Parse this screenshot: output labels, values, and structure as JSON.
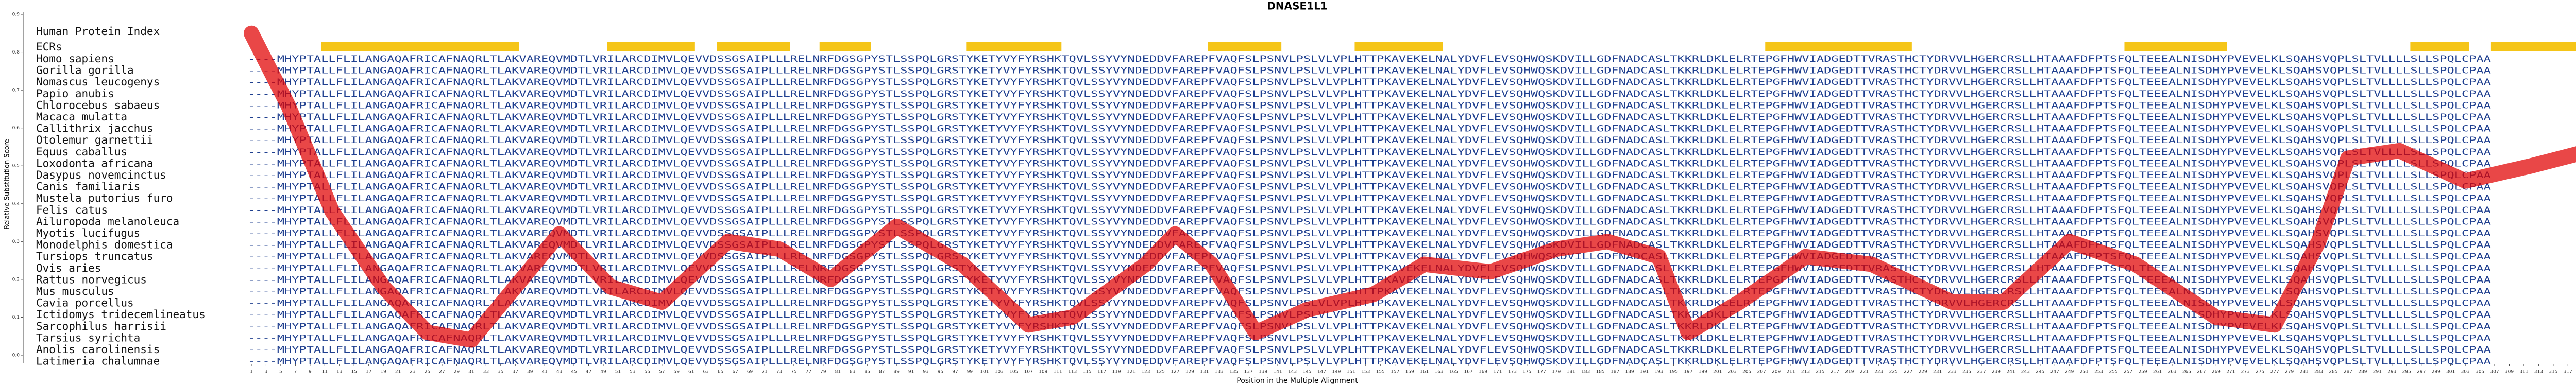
{
  "chart_data": {
    "type": "line",
    "title": "DNASE1L1",
    "xlabel": "Position in the Multiple Alignment",
    "ylabel": "Relative Substitution Score",
    "x": [
      1,
      6,
      12,
      19,
      25,
      31,
      37,
      43,
      50,
      57,
      66,
      73,
      80,
      89,
      98,
      107,
      113,
      123,
      127,
      132,
      138,
      145,
      154,
      161,
      170,
      179,
      186,
      193,
      197,
      204,
      213,
      222,
      233,
      240,
      249,
      258,
      269,
      277,
      283,
      287,
      294,
      303,
      312,
      320
    ],
    "series": [
      {
        "color": "#e00000",
        "values": [
          0.85,
          0.66,
          0.38,
          0.18,
          0.06,
          0.04,
          0.18,
          0.32,
          0.18,
          0.14,
          0.3,
          0.28,
          0.2,
          0.34,
          0.24,
          0.08,
          0.1,
          0.24,
          0.32,
          0.24,
          0.06,
          0.12,
          0.16,
          0.24,
          0.22,
          0.28,
          0.3,
          0.26,
          0.06,
          0.14,
          0.26,
          0.24,
          0.14,
          0.14,
          0.3,
          0.24,
          0.1,
          0.08,
          0.3,
          0.52,
          0.54,
          0.46,
          0.5,
          0.54
        ]
      }
    ],
    "xlim": [
      1,
      320
    ],
    "ylim": [
      0,
      0.9
    ],
    "xticks": [
      1,
      3,
      5,
      7,
      9,
      11,
      13,
      15,
      17,
      19,
      21,
      23,
      25,
      27,
      29,
      31,
      33,
      35,
      37,
      39,
      41,
      43,
      45,
      47,
      49,
      51,
      53,
      55,
      57,
      59,
      61,
      63,
      65,
      67,
      69,
      71,
      73,
      75,
      77,
      79,
      81,
      83,
      85,
      87,
      89,
      91,
      93,
      95,
      97,
      99,
      101,
      103,
      105,
      107,
      109,
      111,
      113,
      115,
      117,
      119,
      121,
      123,
      125,
      127,
      129,
      131,
      133,
      135,
      137,
      139,
      141,
      143,
      145,
      147,
      149,
      151,
      153,
      155,
      157,
      159,
      161,
      163,
      165,
      167,
      169,
      171,
      173,
      175,
      177,
      179,
      181,
      183,
      185,
      187,
      189,
      191,
      193,
      195,
      197,
      199,
      201,
      203,
      205,
      207,
      209,
      211,
      213,
      215,
      217,
      219,
      221,
      223,
      225,
      227,
      229,
      231,
      233,
      235,
      237,
      239,
      241,
      243,
      245,
      247,
      249,
      251,
      253,
      255,
      257,
      259,
      261,
      263,
      265,
      267,
      269,
      271,
      273,
      275,
      277,
      279,
      281,
      283,
      285,
      287,
      289,
      291,
      293,
      295,
      297,
      299,
      301,
      303,
      305,
      307,
      309,
      311,
      313,
      315,
      317,
      319
    ],
    "yticks": [
      {
        "value": 0,
        "label": "0.0"
      },
      0.1,
      0.2,
      0.3,
      0.4,
      0.5,
      0.6,
      0.7,
      0.8,
      0.9
    ]
  },
  "alignment": {
    "index_label": "Human Protein Index",
    "ecr_label": "ECRs",
    "ecrs": [
      [
        11,
        37
      ],
      [
        50,
        61
      ],
      [
        65,
        74
      ],
      [
        79,
        85
      ],
      [
        99,
        111
      ],
      [
        132,
        141
      ],
      [
        152,
        163
      ],
      [
        208,
        227
      ],
      [
        257,
        270
      ],
      [
        296,
        303
      ],
      [
        307,
        318
      ]
    ],
    "rows": [
      {
        "species": "Homo sapiens",
        "sequence": "----MHYPTALLFLILANGAQAFRICAFNAQRLTLAKVAREQVMDTLVRILARCDIMVLQEVVDSSGSAIPLLLRELNRFDGSGPYSTLSSPQLGRSTYKETYVYFYRSHKTQVLSSYVYNDEDDVFAREPFVAQFSLPSNVLPSLVLVPLHTTPKAVEKELNALYDVFLEVSQHWQSKDVILLGDFNADCASLTKKRLDKLELRTEPGFHWVIADGEDTTVRASTHCTYDRVVLHGERCRSLLHTAAAFDFPTSFQLTEEEALNISDHYPVEVELKLSQAHSVQPLSLTVLLLLSLLSPQLCPAA"
      },
      {
        "species": "Gorilla gorilla",
        "sequence": "----MHYPTALLFLILANGAQAFRICAFNAQRLTLAKVAREQVMDTLVRILARCDIMVLQEVVDSSGSAIPLLLRELNRFDGSGPYSTLSSPQLGRSTYKETYVYFYRSHKTQVLSSYVYNDEDDVFAREPFVAQFSLPSNVLPSLVLVPLHTTPKAVEKELNALYDVFLEVSQHWQSKDVILLGDFNADCASLTKKRLDKLELRTEPGFHWVIADGEDTTVRASTHCTYDRVVLHGERCRSLLHTAAAFDFPTSFQLTEEEALNISDHYPVEVELKLSQAHSVQPLSLTVLLLLSLLSPQLCPAA"
      },
      {
        "species": "Nomascus leucogenys",
        "sequence": "----MHYPTALLFLILANGAQAFRICAFNAQRLTLAKVAREQVMDTLVRILARCDIMVLQEVVDSSGSAIPLLLRELNRFDGSGPYSTLSSPQLGRSTYKETYVYFYRSHKTQVLSSYVYNDEDDVFAREPFVAQFSLPSNVLPSLVLVPLHTTPKAVEKELNALYDVFLEVSQHWQSKDVILLGDFNADCASLTKKRLDKLELRTEPGFHWVIADGEDTTVRASTHCTYDRVVLHGERCRSLLHTAAAFDFPTSFQLTEEEALNISDHYPVEVELKLSQAHSVQPLSLTVLLLLSLLSPQLCPAA"
      },
      {
        "species": "Papio anubis",
        "sequence": "----MHYPTALLFLILANGAQAFRICAFNAQRLTLAKVAREQVMDTLVRILARCDIMVLQEVVDSSGSAIPLLLRELNRFDGSGPYSTLSSPQLGRSTYKETYVYFYRSHKTQVLSSYVYNDEDDVFAREPFVAQFSLPSNVLPSLVLVPLHTTPKAVEKELNALYDVFLEVSQHWQSKDVILLGDFNADCASLTKKRLDKLELRTEPGFHWVIADGEDTTVRASTHCTYDRVVLHGERCRSLLHTAAAFDFPTSFQLTEEEALNISDHYPVEVELKLSQAHSVQPLSLTVLLLLSLLSPQLCPAA"
      },
      {
        "species": "Chlorocebus sabaeus",
        "sequence": "----MHYPTALLFLILANGAQAFRICAFNAQRLTLAKVAREQVMDTLVRILARCDIMVLQEVVDSSGSAIPLLLRELNRFDGSGPYSTLSSPQLGRSTYKETYVYFYRSHKTQVLSSYVYNDEDDVFAREPFVAQFSLPSNVLPSLVLVPLHTTPKAVEKELNALYDVFLEVSQHWQSKDVILLGDFNADCASLTKKRLDKLELRTEPGFHWVIADGEDTTVRASTHCTYDRVVLHGERCRSLLHTAAAFDFPTSFQLTEEEALNISDHYPVEVELKLSQAHSVQPLSLTVLLLLSLLSPQLCPAA"
      },
      {
        "species": "Macaca mulatta",
        "sequence": "----MHYPTALLFLILANGAQAFRICAFNAQRLTLAKVAREQVMDTLVRILARCDIMVLQEVVDSSGSAIPLLLRELNRFDGSGPYSTLSSPQLGRSTYKETYVYFYRSHKTQVLSSYVYNDEDDVFAREPFVAQFSLPSNVLPSLVLVPLHTTPKAVEKELNALYDVFLEVSQHWQSKDVILLGDFNADCASLTKKRLDKLELRTEPGFHWVIADGEDTTVRASTHCTYDRVVLHGERCRSLLHTAAAFDFPTSFQLTEEEALNISDHYPVEVELKLSQAHSVQPLSLTVLLLLSLLSPQLCPAA"
      },
      {
        "species": "Callithrix jacchus",
        "sequence": "----MHYPTALLFLILANGAQAFRICAFNAQRLTLAKVAREQVMDTLVRILARCDIMVLQEVVDSSGSAIPLLLRELNRFDGSGPYSTLSSPQLGRSTYKETYVYFYRSHKTQVLSSYVYNDEDDVFAREPFVAQFSLPSNVLPSLVLVPLHTTPKAVEKELNALYDVFLEVSQHWQSKDVILLGDFNADCASLTKKRLDKLELRTEPGFHWVIADGEDTTVRASTHCTYDRVVLHGERCRSLLHTAAAFDFPTSFQLTEEEALNISDHYPVEVELKLSQAHSVQPLSLTVLLLLSLLSPQLCPAA"
      },
      {
        "species": "Otolemur garnettii",
        "sequence": "----MHYPTALLFLILANGAQAFRICAFNAQRLTLAKVAREQVMDTLVRILARCDIMVLQEVVDSSGSAIPLLLRELNRFDGSGPYSTLSSPQLGRSTYKETYVYFYRSHKTQVLSSYVYNDEDDVFAREPFVAQFSLPSNVLPSLVLVPLHTTPKAVEKELNALYDVFLEVSQHWQSKDVILLGDFNADCASLTKKRLDKLELRTEPGFHWVIADGEDTTVRASTHCTYDRVVLHGERCRSLLHTAAAFDFPTSFQLTEEEALNISDHYPVEVELKLSQAHSVQPLSLTVLLLLSLLSPQLCPAA"
      },
      {
        "species": "Equus caballus",
        "sequence": "----MHYPTALLFLILANGAQAFRICAFNAQRLTLAKVAREQVMDTLVRILARCDIMVLQEVVDSSGSAIPLLLRELNRFDGSGPYSTLSSPQLGRSTYKETYVYFYRSHKTQVLSSYVYNDEDDVFAREPFVAQFSLPSNVLPSLVLVPLHTTPKAVEKELNALYDVFLEVSQHWQSKDVILLGDFNADCASLTKKRLDKLELRTEPGFHWVIADGEDTTVRASTHCTYDRVVLHGERCRSLLHTAAAFDFPTSFQLTEEEALNISDHYPVEVELKLSQAHSVQPLSLTVLLLLSLLSPQLCPAA"
      },
      {
        "species": "Loxodonta africana",
        "sequence": "----MHYPTALLFLILANGAQAFRICAFNAQRLTLAKVAREQVMDTLVRILARCDIMVLQEVVDSSGSAIPLLLRELNRFDGSGPYSTLSSPQLGRSTYKETYVYFYRSHKTQVLSSYVYNDEDDVFAREPFVAQFSLPSNVLPSLVLVPLHTTPKAVEKELNALYDVFLEVSQHWQSKDVILLGDFNADCASLTKKRLDKLELRTEPGFHWVIADGEDTTVRASTHCTYDRVVLHGERCRSLLHTAAAFDFPTSFQLTEEEALNISDHYPVEVELKLSQAHSVQPLSLTVLLLLSLLSPQLCPAA"
      },
      {
        "species": "Dasypus novemcinctus",
        "sequence": "----MHYPTALLFLILANGAQAFRICAFNAQRLTLAKVAREQVMDTLVRILARCDIMVLQEVVDSSGSAIPLLLRELNRFDGSGPYSTLSSPQLGRSTYKETYVYFYRSHKTQVLSSYVYNDEDDVFAREPFVAQFSLPSNVLPSLVLVPLHTTPKAVEKELNALYDVFLEVSQHWQSKDVILLGDFNADCASLTKKRLDKLELRTEPGFHWVIADGEDTTVRASTHCTYDRVVLHGERCRSLLHTAAAFDFPTSFQLTEEEALNISDHYPVEVELKLSQAHSVQPLSLTVLLLLSLLSPQLCPAA"
      },
      {
        "species": "Canis familiaris",
        "sequence": "----MHYPTALLFLILANGAQAFRICAFNAQRLTLAKVAREQVMDTLVRILARCDIMVLQEVVDSSGSAIPLLLRELNRFDGSGPYSTLSSPQLGRSTYKETYVYFYRSHKTQVLSSYVYNDEDDVFAREPFVAQFSLPSNVLPSLVLVPLHTTPKAVEKELNALYDVFLEVSQHWQSKDVILLGDFNADCASLTKKRLDKLELRTEPGFHWVIADGEDTTVRASTHCTYDRVVLHGERCRSLLHTAAAFDFPTSFQLTEEEALNISDHYPVEVELKLSQAHSVQPLSLTVLLLLSLLSPQLCPAA"
      },
      {
        "species": "Mustela putorius furo",
        "sequence": "----MHYPTALLFLILANGAQAFRICAFNAQRLTLAKVAREQVMDTLVRILARCDIMVLQEVVDSSGSAIPLLLRELNRFDGSGPYSTLSSPQLGRSTYKETYVYFYRSHKTQVLSSYVYNDEDDVFAREPFVAQFSLPSNVLPSLVLVPLHTTPKAVEKELNALYDVFLEVSQHWQSKDVILLGDFNADCASLTKKRLDKLELRTEPGFHWVIADGEDTTVRASTHCTYDRVVLHGERCRSLLHTAAAFDFPTSFQLTEEEALNISDHYPVEVELKLSQAHSVQPLSLTVLLLLSLLSPQLCPAA"
      },
      {
        "species": "Felis catus",
        "sequence": "----MHYPTALLFLILANGAQAFRICAFNAQRLTLAKVAREQVMDTLVRILARCDIMVLQEVVDSSGSAIPLLLRELNRFDGSGPYSTLSSPQLGRSTYKETYVYFYRSHKTQVLSSYVYNDEDDVFAREPFVAQFSLPSNVLPSLVLVPLHTTPKAVEKELNALYDVFLEVSQHWQSKDVILLGDFNADCASLTKKRLDKLELRTEPGFHWVIADGEDTTVRASTHCTYDRVVLHGERCRSLLHTAAAFDFPTSFQLTEEEALNISDHYPVEVELKLSQAHSVQPLSLTVLLLLSLLSPQLCPAA"
      },
      {
        "species": "Ailuropoda melanoleuca",
        "sequence": "----MHYPTALLFLILANGAQAFRICAFNAQRLTLAKVAREQVMDTLVRILARCDIMVLQEVVDSSGSAIPLLLRELNRFDGSGPYSTLSSPQLGRSTYKETYVYFYRSHKTQVLSSYVYNDEDDVFAREPFVAQFSLPSNVLPSLVLVPLHTTPKAVEKELNALYDVFLEVSQHWQSKDVILLGDFNADCASLTKKRLDKLELRTEPGFHWVIADGEDTTVRASTHCTYDRVVLHGERCRSLLHTAAAFDFPTSFQLTEEEALNISDHYPVEVELKLSQAHSVQPLSLTVLLLLSLLSPQLCPAA"
      },
      {
        "species": "Myotis lucifugus",
        "sequence": "----MHYPTALLFLILANGAQAFRICAFNAQRLTLAKVAREQVMDTLVRILARCDIMVLQEVVDSSGSAIPLLLRELNRFDGSGPYSTLSSPQLGRSTYKETYVYFYRSHKTQVLSSYVYNDEDDVFAREPFVAQFSLPSNVLPSLVLVPLHTTPKAVEKELNALYDVFLEVSQHWQSKDVILLGDFNADCASLTKKRLDKLELRTEPGFHWVIADGEDTTVRASTHCTYDRVVLHGERCRSLLHTAAAFDFPTSFQLTEEEALNISDHYPVEVELKLSQAHSVQPLSLTVLLLLSLLSPQLCPAA"
      },
      {
        "species": "Monodelphis domestica",
        "sequence": "----MHYPTALLFLILANGAQAFRICAFNAQRLTLAKVAREQVMDTLVRILARCDIMVLQEVVDSSGSAIPLLLRELNRFDGSGPYSTLSSPQLGRSTYKETYVYFYRSHKTQVLSSYVYNDEDDVFAREPFVAQFSLPSNVLPSLVLVPLHTTPKAVEKELNALYDVFLEVSQHWQSKDVILLGDFNADCASLTKKRLDKLELRTEPGFHWVIADGEDTTVRASTHCTYDRVVLHGERCRSLLHTAAAFDFPTSFQLTEEEALNISDHYPVEVELKLSQAHSVQPLSLTVLLLLSLLSPQLCPAA"
      },
      {
        "species": "Tursiops truncatus",
        "sequence": "----MHYPTALLFLILANGAQAFRICAFNAQRLTLAKVAREQVMDTLVRILARCDIMVLQEVVDSSGSAIPLLLRELNRFDGSGPYSTLSSPQLGRSTYKETYVYFYRSHKTQVLSSYVYNDEDDVFAREPFVAQFSLPSNVLPSLVLVPLHTTPKAVEKELNALYDVFLEVSQHWQSKDVILLGDFNADCASLTKKRLDKLELRTEPGFHWVIADGEDTTVRASTHCTYDRVVLHGERCRSLLHTAAAFDFPTSFQLTEEEALNISDHYPVEVELKLSQAHSVQPLSLTVLLLLSLLSPQLCPAA"
      },
      {
        "species": "Ovis aries",
        "sequence": "----MHYPTALLFLILANGAQAFRICAFNAQRLTLAKVAREQVMDTLVRILARCDIMVLQEVVDSSGSAIPLLLRELNRFDGSGPYSTLSSPQLGRSTYKETYVYFYRSHKTQVLSSYVYNDEDDVFAREPFVAQFSLPSNVLPSLVLVPLHTTPKAVEKELNALYDVFLEVSQHWQSKDVILLGDFNADCASLTKKRLDKLELRTEPGFHWVIADGEDTTVRASTHCTYDRVVLHGERCRSLLHTAAAFDFPTSFQLTEEEALNISDHYPVEVELKLSQAHSVQPLSLTVLLLLSLLSPQLCPAA"
      },
      {
        "species": "Rattus norvegicus",
        "sequence": "----MHYPTALLFLILANGAQAFRICAFNAQRLTLAKVAREQVMDTLVRILARCDIMVLQEVVDSSGSAIPLLLRELNRFDGSGPYSTLSSPQLGRSTYKETYVYFYRSHKTQVLSSYVYNDEDDVFAREPFVAQFSLPSNVLPSLVLVPLHTTPKAVEKELNALYDVFLEVSQHWQSKDVILLGDFNADCASLTKKRLDKLELRTEPGFHWVIADGEDTTVRASTHCTYDRVVLHGERCRSLLHTAAAFDFPTSFQLTEEEALNISDHYPVEVELKLSQAHSVQPLSLTVLLLLSLLSPQLCPAA"
      },
      {
        "species": "Mus musculus",
        "sequence": "----MHYPTALLFLILANGAQAFRICAFNAQRLTLAKVAREQVMDTLVRILARCDIMVLQEVVDSSGSAIPLLLRELNRFDGSGPYSTLSSPQLGRSTYKETYVYFYRSHKTQVLSSYVYNDEDDVFAREPFVAQFSLPSNVLPSLVLVPLHTTPKAVEKELNALYDVFLEVSQHWQSKDVILLGDFNADCASLTKKRLDKLELRTEPGFHWVIADGEDTTVRASTHCTYDRVVLHGERCRSLLHTAAAFDFPTSFQLTEEEALNISDHYPVEVELKLSQAHSVQPLSLTVLLLLSLLSPQLCPAA"
      },
      {
        "species": "Cavia porcellus",
        "sequence": "----MHYPTALLFLILANGAQAFRICAFNAQRLTLAKVAREQVMDTLVRILARCDIMVLQEVVDSSGSAIPLLLRELNRFDGSGPYSTLSSPQLGRSTYKETYVYFYRSHKTQVLSSYVYNDEDDVFAREPFVAQFSLPSNVLPSLVLVPLHTTPKAVEKELNALYDVFLEVSQHWQSKDVILLGDFNADCASLTKKRLDKLELRTEPGFHWVIADGEDTTVRASTHCTYDRVVLHGERCRSLLHTAAAFDFPTSFQLTEEEALNISDHYPVEVELKLSQAHSVQPLSLTVLLLLSLLSPQLCPAA"
      },
      {
        "species": "Ictidomys tridecemlineatus",
        "sequence": "----MHYPTALLFLILANGAQAFRICAFNAQRLTLAKVAREQVMDTLVRILARCDIMVLQEVVDSSGSAIPLLLRELNRFDGSGPYSTLSSPQLGRSTYKETYVYFYRSHKTQVLSSYVYNDEDDVFAREPFVAQFSLPSNVLPSLVLVPLHTTPKAVEKELNALYDVFLEVSQHWQSKDVILLGDFNADCASLTKKRLDKLELRTEPGFHWVIADGEDTTVRASTHCTYDRVVLHGERCRSLLHTAAAFDFPTSFQLTEEEALNISDHYPVEVELKLSQAHSVQPLSLTVLLLLSLLSPQLCPAA"
      },
      {
        "species": "Sarcophilus harrisii",
        "sequence": "----MHYPTALLFLILANGAQAFRICAFNAQRLTLAKVAREQVMDTLVRILARCDIMVLQEVVDSSGSAIPLLLRELNRFDGSGPYSTLSSPQLGRSTYKETYVYFYRSHKTQVLSSYVYNDEDDVFAREPFVAQFSLPSNVLPSLVLVPLHTTPKAVEKELNALYDVFLEVSQHWQSKDVILLGDFNADCASLTKKRLDKLELRTEPGFHWVIADGEDTTVRASTHCTYDRVVLHGERCRSLLHTAAAFDFPTSFQLTEEEALNISDHYPVEVELKLSQAHSVQPLSLTVLLLLSLLSPQLCPAA"
      },
      {
        "species": "Tarsius syrichta",
        "sequence": "----MHYPTALLFLILANGAQAFRICAFNAQRLTLAKVAREQVMDTLVRILARCDIMVLQEVVDSSGSAIPLLLRELNRFDGSGPYSTLSSPQLGRSTYKETYVYFYRSHKTQVLSSYVYNDEDDVFAREPFVAQFSLPSNVLPSLVLVPLHTTPKAVEKELNALYDVFLEVSQHWQSKDVILLGDFNADCASLTKKRLDKLELRTEPGFHWVIADGEDTTVRASTHCTYDRVVLHGERCRSLLHTAAAFDFPTSFQLTEEEALNISDHYPVEVELKLSQAHSVQPLSLTVLLLLSLLSPQLCPAA"
      },
      {
        "species": "Anolis carolinensis",
        "sequence": "----MHYPTALLFLILANGAQAFRICAFNAQRLTLAKVAREQVMDTLVRILARCDIMVLQEVVDSSGSAIPLLLRELNRFDGSGPYSTLSSPQLGRSTYKETYVYFYRSHKTQVLSSYVYNDEDDVFAREPFVAQFSLPSNVLPSLVLVPLHTTPKAVEKELNALYDVFLEVSQHWQSKDVILLGDFNADCASLTKKRLDKLELRTEPGFHWVIADGEDTTVRASTHCTYDRVVLHGERCRSLLHTAAAFDFPTSFQLTEEEALNISDHYPVEVELKLSQAHSVQPLSLTVLLLLSLLSPQLCPAA"
      },
      {
        "species": "Latimeria chalumnae",
        "sequence": "----MHYPTALLFLILANGAQAFRICAFNAQRLTLAKVAREQVMDTLVRILARCDIMVLQEVVDSSGSAIPLLLRELNRFDGSGPYSTLSSPQLGRSTYKETYVYFYRSHKTQVLSSYVYNDEDDVFAREPFVAQFSLPSNVLPSLVLVPLHTTPKAVEKELNALYDVFLEVSQHWQSKDVILLGDFNADCASLTKKRLDKLELRTEPGFHWVIADGEDTTVRASTHCTYDRVVLHGERCRSLLHTAAAFDFPTSFQLTEEEALNISDHYPVEVELKLSQAHSVQPLSLTVLLLLSLLSPQLCPAA"
      }
    ]
  }
}
